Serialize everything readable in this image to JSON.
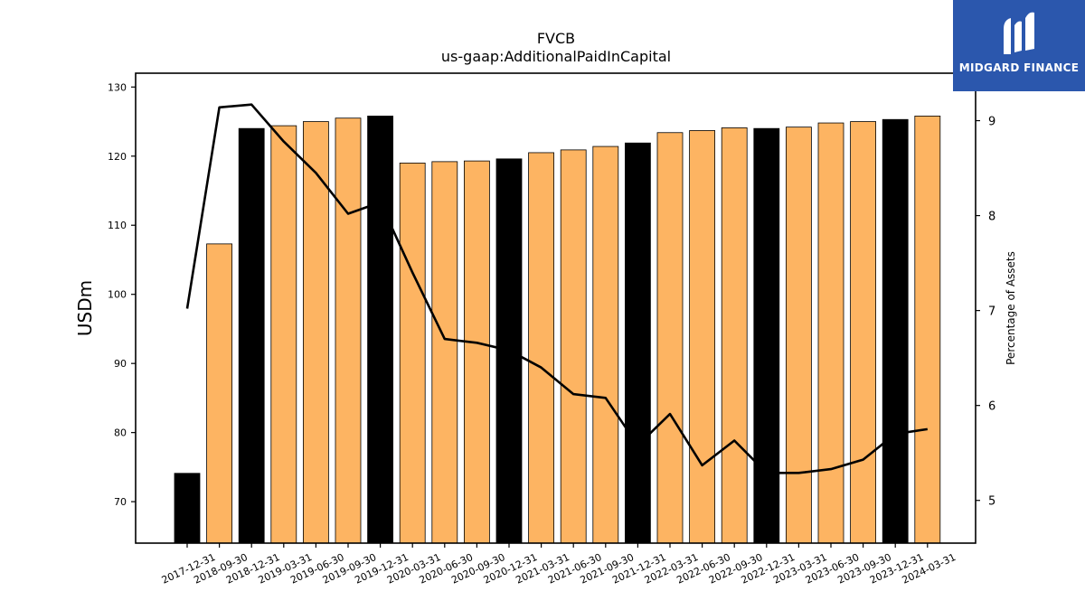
{
  "chart_data": {
    "type": "bar",
    "title": "FVCB",
    "subtitle": "us-gaap:AdditionalPaidInCapital",
    "ylabel": "USDm",
    "y2label": "Percentage of Assets",
    "ylim": [
      64,
      132
    ],
    "y2lim": [
      4.55,
      9.5
    ],
    "yticks": [
      70,
      80,
      90,
      100,
      110,
      120,
      130
    ],
    "y2ticks": [
      5,
      6,
      7,
      8,
      9
    ],
    "categories": [
      "2017-12-31",
      "2018-09-30",
      "2018-12-31",
      "2019-03-31",
      "2019-06-30",
      "2019-09-30",
      "2019-12-31",
      "2020-03-31",
      "2020-06-30",
      "2020-09-30",
      "2020-12-31",
      "2021-03-31",
      "2021-06-30",
      "2021-09-30",
      "2021-12-31",
      "2022-03-31",
      "2022-06-30",
      "2022-09-30",
      "2022-12-31",
      "2023-03-31",
      "2023-06-30",
      "2023-09-30",
      "2023-12-31",
      "2024-03-31"
    ],
    "series": [
      {
        "type": "bar",
        "axis": "left",
        "values": [
          74.1,
          107.3,
          124.0,
          124.4,
          125.0,
          125.5,
          125.8,
          119.0,
          119.2,
          119.3,
          119.6,
          120.5,
          120.9,
          121.4,
          121.9,
          123.4,
          123.7,
          124.1,
          124.0,
          124.2,
          124.8,
          125.0,
          125.3,
          125.8
        ],
        "year_end": [
          true,
          false,
          true,
          false,
          false,
          false,
          true,
          false,
          false,
          false,
          true,
          false,
          false,
          false,
          true,
          false,
          false,
          false,
          true,
          false,
          false,
          false,
          true,
          false
        ]
      },
      {
        "type": "line",
        "axis": "right",
        "values": [
          7.02,
          9.14,
          9.17,
          8.78,
          8.45,
          8.02,
          8.14,
          7.4,
          6.7,
          6.66,
          6.58,
          6.4,
          6.12,
          6.08,
          5.58,
          5.91,
          5.37,
          5.63,
          5.29,
          5.29,
          5.33,
          5.43,
          5.7,
          5.75
        ]
      }
    ],
    "colors": {
      "bar": "#fdb462",
      "bar_year_end": "#000000",
      "line": "#000000"
    },
    "grid": false
  },
  "logo": {
    "name": "MIDGARD FINANCE",
    "bg_color": "#2b57ad"
  }
}
